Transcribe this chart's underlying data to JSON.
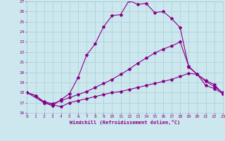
{
  "xlabel": "Windchill (Refroidissement éolien,°C)",
  "xlim": [
    0,
    23
  ],
  "ylim": [
    16,
    27
  ],
  "xticks": [
    0,
    1,
    2,
    3,
    4,
    5,
    6,
    7,
    8,
    9,
    10,
    11,
    12,
    13,
    14,
    15,
    16,
    17,
    18,
    19,
    20,
    21,
    22,
    23
  ],
  "yticks": [
    16,
    17,
    18,
    19,
    20,
    21,
    22,
    23,
    24,
    25,
    26,
    27
  ],
  "bg_color": "#cce8ee",
  "grid_color": "#a8cdd5",
  "line_color": "#880088",
  "line1_x": [
    0,
    1,
    2,
    3,
    4,
    5,
    6,
    7,
    8,
    9,
    10,
    11,
    12,
    13,
    14,
    15,
    16,
    17,
    18,
    19,
    20,
    21,
    22,
    23
  ],
  "line1_y": [
    18,
    17.7,
    17.0,
    16.8,
    16.6,
    17.0,
    17.2,
    17.4,
    17.6,
    17.8,
    18.0,
    18.1,
    18.3,
    18.5,
    18.7,
    18.9,
    19.1,
    19.3,
    19.6,
    19.9,
    19.8,
    19.2,
    18.8,
    17.9
  ],
  "line2_x": [
    0,
    1,
    2,
    3,
    4,
    5,
    6,
    7,
    8,
    9,
    10,
    11,
    12,
    13,
    14,
    15,
    16,
    17,
    18,
    19,
    20,
    21,
    22,
    23
  ],
  "line2_y": [
    18,
    17.7,
    17.1,
    16.9,
    17.2,
    17.5,
    17.8,
    18.1,
    18.5,
    18.9,
    19.3,
    19.8,
    20.3,
    20.9,
    21.4,
    21.9,
    22.3,
    22.6,
    23.0,
    20.6,
    19.8,
    19.1,
    18.6,
    18.0
  ],
  "line3_x": [
    0,
    2,
    3,
    4,
    5,
    6,
    7,
    8,
    9,
    10,
    11,
    12,
    13,
    14,
    15,
    16,
    17,
    18,
    19,
    20,
    21,
    22,
    23
  ],
  "line3_y": [
    18,
    17.0,
    16.7,
    17.3,
    17.9,
    19.5,
    21.7,
    22.8,
    24.5,
    25.6,
    25.7,
    27.1,
    26.7,
    26.8,
    25.9,
    26.0,
    25.3,
    24.4,
    20.5,
    19.8,
    18.7,
    18.4,
    17.9
  ]
}
